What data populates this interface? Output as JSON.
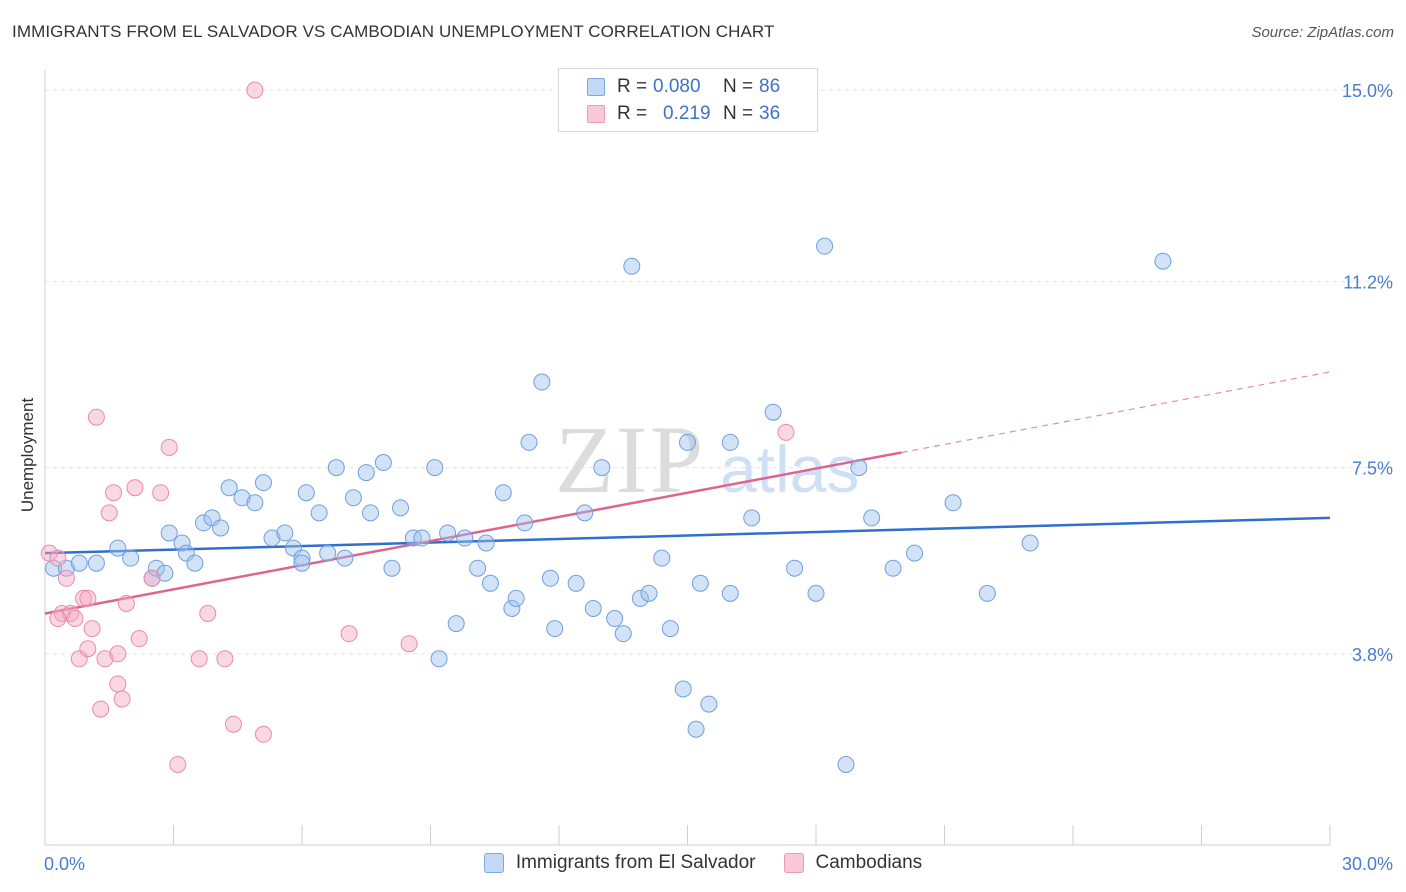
{
  "title": "IMMIGRANTS FROM EL SALVADOR VS CAMBODIAN UNEMPLOYMENT CORRELATION CHART",
  "source": "Source: ZipAtlas.com",
  "watermark": {
    "zip": "ZIP",
    "atlas": "atlas"
  },
  "legend_top": [
    {
      "r_label": "R =",
      "r_value": "0.080",
      "n_label": "N =",
      "n_value": "86",
      "color": "#9ec0ee"
    },
    {
      "r_label": "R =",
      "r_value": "0.219",
      "n_label": "N =",
      "n_value": "36",
      "color": "#f3a9c1"
    }
  ],
  "chart_data": {
    "type": "scatter",
    "title": "IMMIGRANTS FROM EL SALVADOR VS CAMBODIAN UNEMPLOYMENT CORRELATION CHART",
    "xlabel": "",
    "ylabel": "Unemployment",
    "xlim": [
      0,
      30
    ],
    "ylim": [
      0,
      15.4
    ],
    "x_tick_labels": [
      "0.0%",
      "30.0%"
    ],
    "y_ticks": [
      3.8,
      7.5,
      11.2,
      15.0
    ],
    "y_tick_labels": [
      "3.8%",
      "7.5%",
      "11.2%",
      "15.0%"
    ],
    "grid": true,
    "legend_position": "bottom",
    "series": [
      {
        "name": "Immigrants from El Salvador",
        "color": "#9ec0ee",
        "stroke": "#6f9fdf",
        "trend": {
          "x0": 0,
          "y0": 5.8,
          "x1": 30,
          "y1": 6.5,
          "color": "#2f6fce"
        },
        "points": [
          [
            0.2,
            5.5
          ],
          [
            0.5,
            5.5
          ],
          [
            0.8,
            5.6
          ],
          [
            1.2,
            5.6
          ],
          [
            1.7,
            5.9
          ],
          [
            2.0,
            5.7
          ],
          [
            2.5,
            5.3
          ],
          [
            2.6,
            5.5
          ],
          [
            2.8,
            5.4
          ],
          [
            2.9,
            6.2
          ],
          [
            3.2,
            6.0
          ],
          [
            3.3,
            5.8
          ],
          [
            3.5,
            5.6
          ],
          [
            3.7,
            6.4
          ],
          [
            3.9,
            6.5
          ],
          [
            4.1,
            6.3
          ],
          [
            4.3,
            7.1
          ],
          [
            4.6,
            6.9
          ],
          [
            4.9,
            6.8
          ],
          [
            5.1,
            7.2
          ],
          [
            5.3,
            6.1
          ],
          [
            5.6,
            6.2
          ],
          [
            5.8,
            5.9
          ],
          [
            6.0,
            5.7
          ],
          [
            6.0,
            5.6
          ],
          [
            6.1,
            7.0
          ],
          [
            6.4,
            6.6
          ],
          [
            6.6,
            5.8
          ],
          [
            6.8,
            7.5
          ],
          [
            7.0,
            5.7
          ],
          [
            7.2,
            6.9
          ],
          [
            7.5,
            7.4
          ],
          [
            7.6,
            6.6
          ],
          [
            7.9,
            7.6
          ],
          [
            8.1,
            5.5
          ],
          [
            8.3,
            6.7
          ],
          [
            8.6,
            6.1
          ],
          [
            8.8,
            6.1
          ],
          [
            9.1,
            7.5
          ],
          [
            9.2,
            3.7
          ],
          [
            9.4,
            6.2
          ],
          [
            9.6,
            4.4
          ],
          [
            9.8,
            6.1
          ],
          [
            10.1,
            5.5
          ],
          [
            10.3,
            6.0
          ],
          [
            10.4,
            5.2
          ],
          [
            10.7,
            7.0
          ],
          [
            10.9,
            4.7
          ],
          [
            11.0,
            4.9
          ],
          [
            11.2,
            6.4
          ],
          [
            11.3,
            8.0
          ],
          [
            11.6,
            9.2
          ],
          [
            11.8,
            5.3
          ],
          [
            11.9,
            4.3
          ],
          [
            12.4,
            5.2
          ],
          [
            12.6,
            6.6
          ],
          [
            12.8,
            4.7
          ],
          [
            13.0,
            7.5
          ],
          [
            13.3,
            4.5
          ],
          [
            13.5,
            4.2
          ],
          [
            13.7,
            11.5
          ],
          [
            13.9,
            4.9
          ],
          [
            14.1,
            5.0
          ],
          [
            14.4,
            5.7
          ],
          [
            14.6,
            4.3
          ],
          [
            14.9,
            3.1
          ],
          [
            15.0,
            8.0
          ],
          [
            15.2,
            2.3
          ],
          [
            15.3,
            5.2
          ],
          [
            15.5,
            2.8
          ],
          [
            16.0,
            8.0
          ],
          [
            16.0,
            5.0
          ],
          [
            16.5,
            6.5
          ],
          [
            17.0,
            8.6
          ],
          [
            17.5,
            5.5
          ],
          [
            18.0,
            5.0
          ],
          [
            18.2,
            11.9
          ],
          [
            18.7,
            1.6
          ],
          [
            19.0,
            7.5
          ],
          [
            19.3,
            6.5
          ],
          [
            19.8,
            5.5
          ],
          [
            20.3,
            5.8
          ],
          [
            21.2,
            6.8
          ],
          [
            22.0,
            5.0
          ],
          [
            23.0,
            6.0
          ],
          [
            26.1,
            11.6
          ]
        ]
      },
      {
        "name": "Cambodians",
        "color": "#f3a9c1",
        "stroke": "#e98aaa",
        "trend": {
          "x0": 0,
          "y0": 4.6,
          "x1": 20.0,
          "y1": 7.8,
          "color": "#e0628f"
        },
        "trend_dashed": {
          "x0": 20.0,
          "y0": 7.8,
          "x1": 30,
          "y1": 9.4
        },
        "points": [
          [
            0.1,
            5.8
          ],
          [
            0.3,
            5.7
          ],
          [
            0.4,
            4.6
          ],
          [
            0.6,
            4.6
          ],
          [
            0.7,
            4.5
          ],
          [
            0.8,
            3.7
          ],
          [
            0.9,
            4.9
          ],
          [
            1.0,
            4.9
          ],
          [
            1.0,
            3.9
          ],
          [
            1.1,
            4.3
          ],
          [
            1.3,
            2.7
          ],
          [
            1.4,
            3.7
          ],
          [
            1.5,
            6.6
          ],
          [
            1.6,
            7.0
          ],
          [
            1.7,
            3.8
          ],
          [
            1.7,
            3.2
          ],
          [
            1.8,
            2.9
          ],
          [
            1.9,
            4.8
          ],
          [
            2.1,
            7.1
          ],
          [
            2.2,
            4.1
          ],
          [
            2.5,
            5.3
          ],
          [
            2.7,
            7.0
          ],
          [
            2.9,
            7.9
          ],
          [
            3.1,
            1.6
          ],
          [
            3.6,
            3.7
          ],
          [
            3.8,
            4.6
          ],
          [
            4.2,
            3.7
          ],
          [
            4.4,
            2.4
          ],
          [
            4.9,
            15.0
          ],
          [
            5.1,
            2.2
          ],
          [
            7.1,
            4.2
          ],
          [
            8.5,
            4.0
          ],
          [
            17.3,
            8.2
          ],
          [
            0.3,
            4.5
          ],
          [
            0.5,
            5.3
          ],
          [
            1.2,
            8.5
          ]
        ]
      }
    ]
  }
}
